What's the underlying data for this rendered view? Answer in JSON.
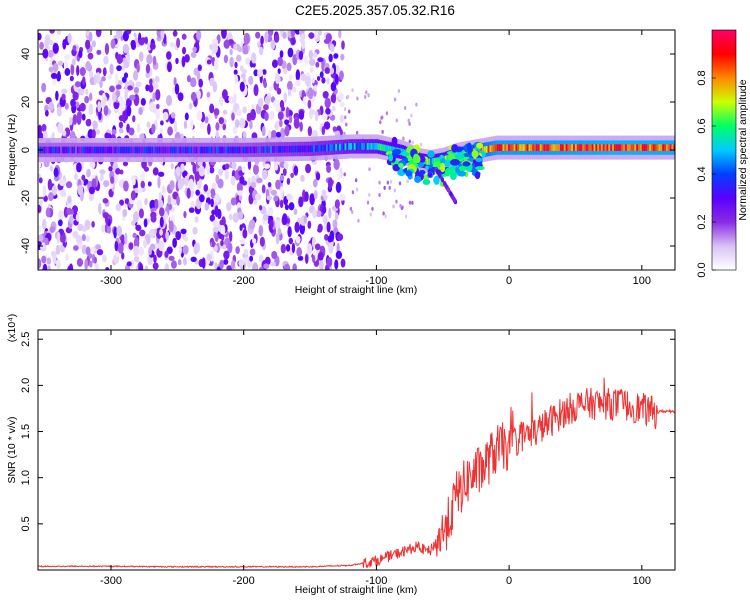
{
  "title": "C2E5.2025.357.05.32.R16",
  "chart_data": [
    {
      "type": "heatmap",
      "xlabel": "Height of straight line (km)",
      "ylabel": "Frequency (Hz)",
      "xlim": [
        -355,
        125
      ],
      "ylim": [
        -50,
        50
      ],
      "x_ticks": [
        -300,
        -200,
        -100,
        0,
        100
      ],
      "y_ticks": [
        -40,
        -20,
        0,
        20,
        40
      ],
      "colorbar": {
        "label": "Normalized spectral amplitude",
        "range": [
          0,
          1
        ],
        "ticks": [
          "0.0",
          "0.2",
          "0.4",
          "0.6",
          "0.8"
        ],
        "colors": [
          "#ffffff",
          "#d9c2f5",
          "#8a2be2",
          "#5a00ff",
          "#0040ff",
          "#00ccff",
          "#00ff66",
          "#ccff00",
          "#ff8800",
          "#ff0000",
          "#ff0066"
        ]
      },
      "ridge": {
        "x": [
          -355,
          -300,
          -200,
          -150,
          -120,
          -100,
          -80,
          -70,
          -60,
          -50,
          -40,
          -30,
          -20,
          -10,
          0,
          20,
          50,
          80,
          110,
          125
        ],
        "freq": [
          0,
          0,
          0,
          0.5,
          1.5,
          1.5,
          -1,
          -4,
          -5,
          -4,
          -2,
          -1,
          0,
          1,
          1,
          1,
          1,
          1,
          1,
          1
        ],
        "amplitude": [
          0.3,
          0.3,
          0.32,
          0.36,
          0.45,
          0.5,
          0.58,
          0.55,
          0.55,
          0.6,
          0.65,
          0.72,
          0.8,
          0.85,
          0.85,
          0.85,
          0.86,
          0.88,
          0.87,
          0.87
        ]
      },
      "noise_region_x": [
        -355,
        -125
      ]
    },
    {
      "type": "line",
      "xlabel": "Height of straight line (km)",
      "ylabel": "SNR (10 * v/v)",
      "y_multiplier": "(x10⁴)",
      "xlim": [
        -355,
        125
      ],
      "ylim": [
        0,
        2.6
      ],
      "x_ticks": [
        -300,
        -200,
        -100,
        0,
        100
      ],
      "y_ticks": [
        0.5,
        1.0,
        1.5,
        2.0,
        2.5
      ],
      "y_tick_labels": [
        "0.5",
        "1.0",
        "1.5",
        "2.0",
        "2.5"
      ],
      "series": [
        {
          "color": "#ee3333",
          "x": [
            -355,
            -300,
            -250,
            -200,
            -150,
            -120,
            -100,
            -90,
            -80,
            -70,
            -60,
            -50,
            -45,
            -40,
            -30,
            -20,
            -10,
            0,
            10,
            20,
            30,
            35,
            40,
            50,
            60,
            70,
            80,
            90,
            100,
            110,
            115,
            125
          ],
          "y": [
            0.04,
            0.04,
            0.035,
            0.035,
            0.035,
            0.05,
            0.1,
            0.15,
            0.2,
            0.25,
            0.2,
            0.4,
            0.55,
            0.8,
            1.0,
            1.1,
            1.3,
            1.35,
            1.45,
            1.5,
            1.6,
            1.65,
            1.7,
            1.78,
            1.8,
            1.8,
            1.8,
            1.78,
            1.75,
            1.7,
            1.72,
            1.72
          ]
        }
      ]
    }
  ]
}
